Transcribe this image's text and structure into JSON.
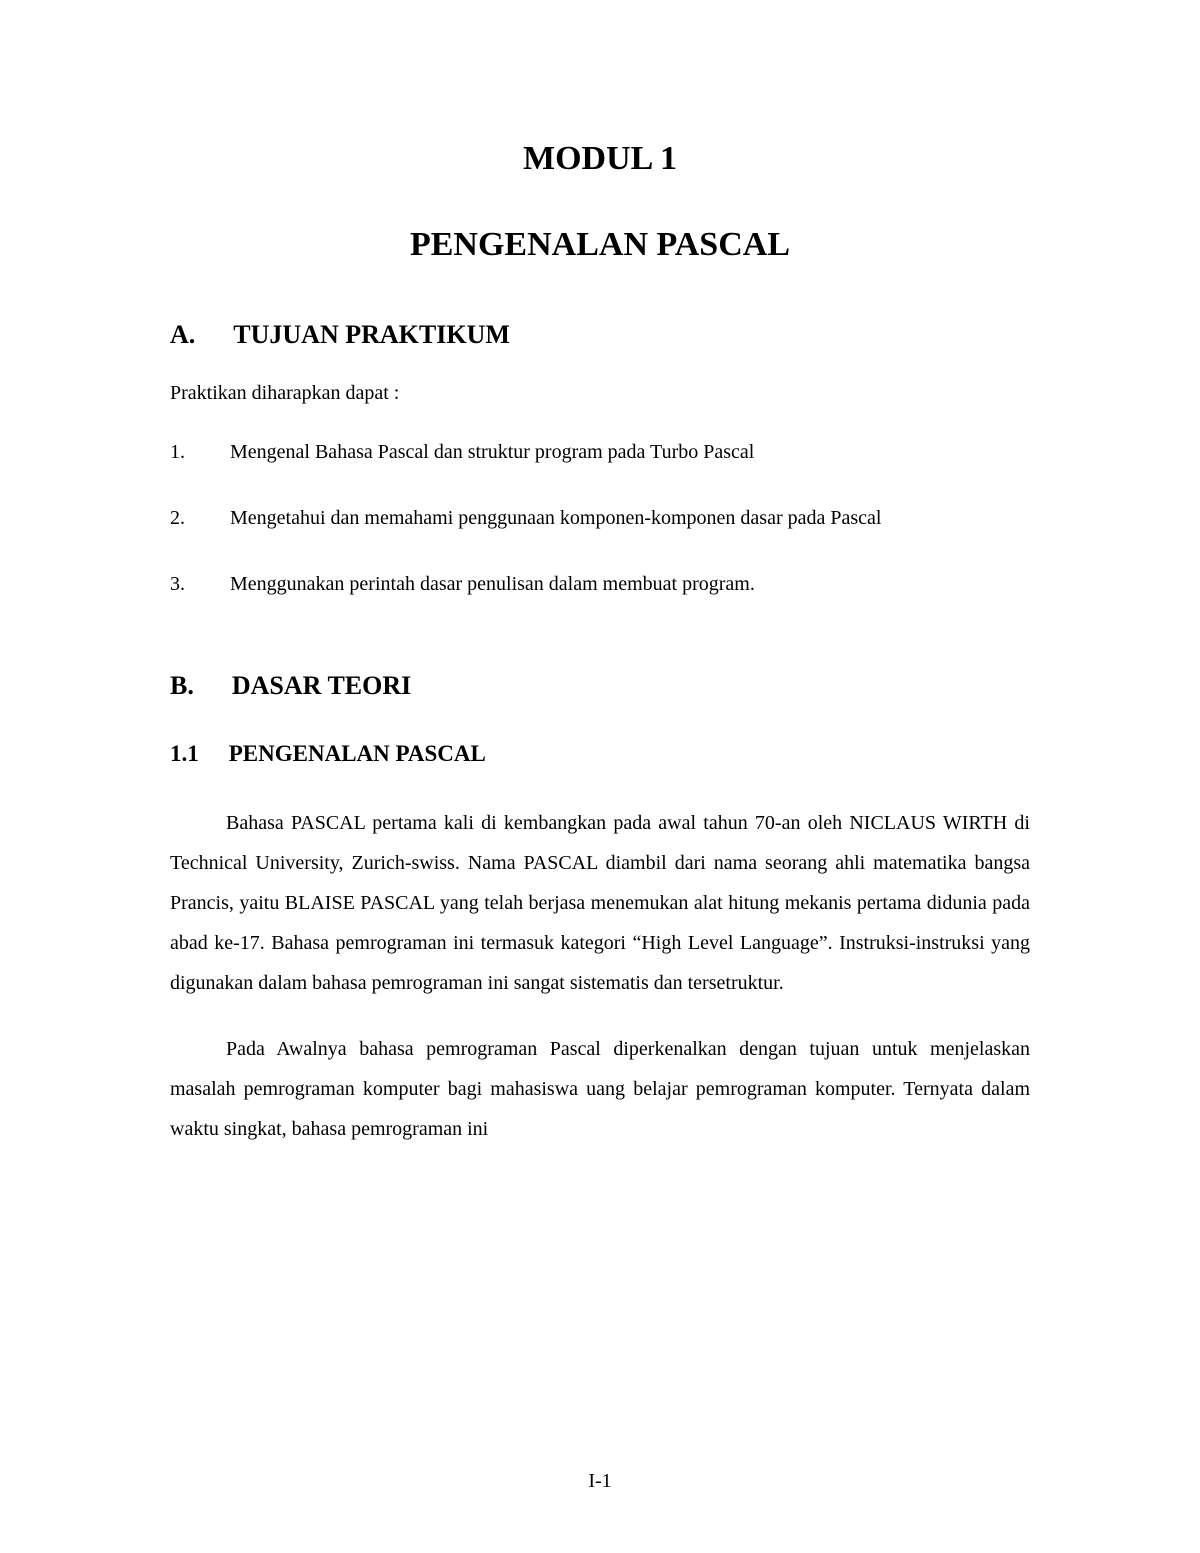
{
  "module_title": "MODUL 1",
  "main_title": "PENGENALAN PASCAL",
  "section_a": {
    "letter": "A.",
    "title": "TUJUAN PRAKTIKUM",
    "intro": "Praktikan diharapkan dapat :",
    "items": [
      {
        "num": "1.",
        "text": "Mengenal Bahasa Pascal dan struktur program pada Turbo Pascal"
      },
      {
        "num": "2.",
        "text": "Mengetahui dan memahami penggunaan komponen-komponen dasar pada Pascal"
      },
      {
        "num": "3.",
        "text": "Menggunakan perintah dasar penulisan dalam membuat program."
      }
    ]
  },
  "section_b": {
    "letter": "B.",
    "title": "DASAR TEORI"
  },
  "subsection": {
    "number": "1.1",
    "title": "PENGENALAN PASCAL"
  },
  "paragraphs": [
    "Bahasa PASCAL pertama kali di kembangkan pada awal tahun 70-an oleh NICLAUS WIRTH di Technical University, Zurich-swiss. Nama PASCAL diambil dari nama seorang ahli matematika bangsa Prancis, yaitu BLAISE PASCAL yang telah berjasa menemukan alat hitung mekanis pertama didunia pada abad ke-17. Bahasa pemrograman ini termasuk kategori “High Level Language”. Instruksi-instruksi yang digunakan dalam bahasa pemrograman ini sangat sistematis dan tersetruktur.",
    "Pada Awalnya bahasa pemrograman Pascal diperkenalkan dengan tujuan untuk menjelaskan masalah pemrograman komputer bagi mahasiswa uang belajar pemrograman komputer. Ternyata dalam waktu singkat, bahasa pemrograman ini"
  ],
  "page_number": "I-1",
  "colors": {
    "text": "#000000",
    "background": "#ffffff"
  },
  "typography": {
    "title_fontsize": 34,
    "section_fontsize": 26,
    "subsection_fontsize": 23,
    "body_fontsize": 20,
    "font_family": "Times New Roman"
  }
}
